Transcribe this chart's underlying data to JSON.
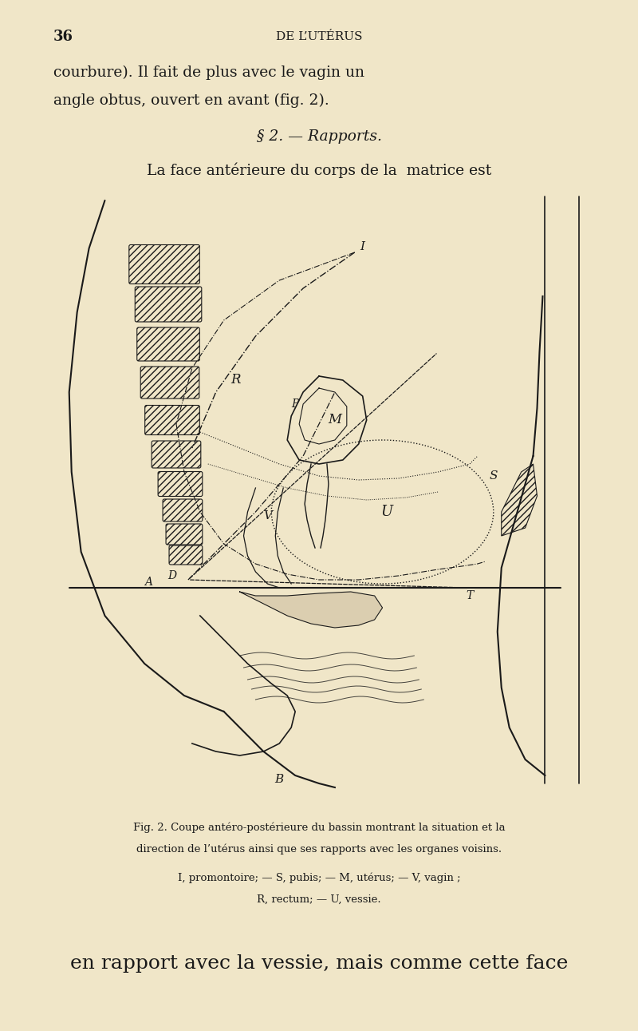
{
  "bg_color": "#f0e6c8",
  "page_number": "36",
  "header_center": "DE L’UTÉRUS",
  "line1": "courbure). Il fait de plus avec le vagin un",
  "line2": "angle obtus, ouvert en avant (fig. 2).",
  "section_title": "§ 2. — Rapports.",
  "body_line1": "La face antérieure du corps de la  matrice est",
  "fig_caption1": "Fig. 2. Coupe antéro-postérieure du bassin montrant la situation et la",
  "fig_caption2": "direction de l’utérus ainsi que ses rapports avec les organes voisins.",
  "fig_legend": "I, promontoire; — S, pubis; — M, utérus; — V, vagin ;",
  "fig_legend2": "R, rectum; — U, vessie.",
  "bottom_text": "en rapport avec la vessie, mais comme cette face",
  "text_color": "#1a1a1a",
  "label_I": "I",
  "label_S": "S",
  "label_M": "M",
  "label_P": "P",
  "label_V": "V",
  "label_R": "R",
  "label_U": "U",
  "label_A": "A",
  "label_D": "D",
  "label_B": "B",
  "label_T": "T"
}
